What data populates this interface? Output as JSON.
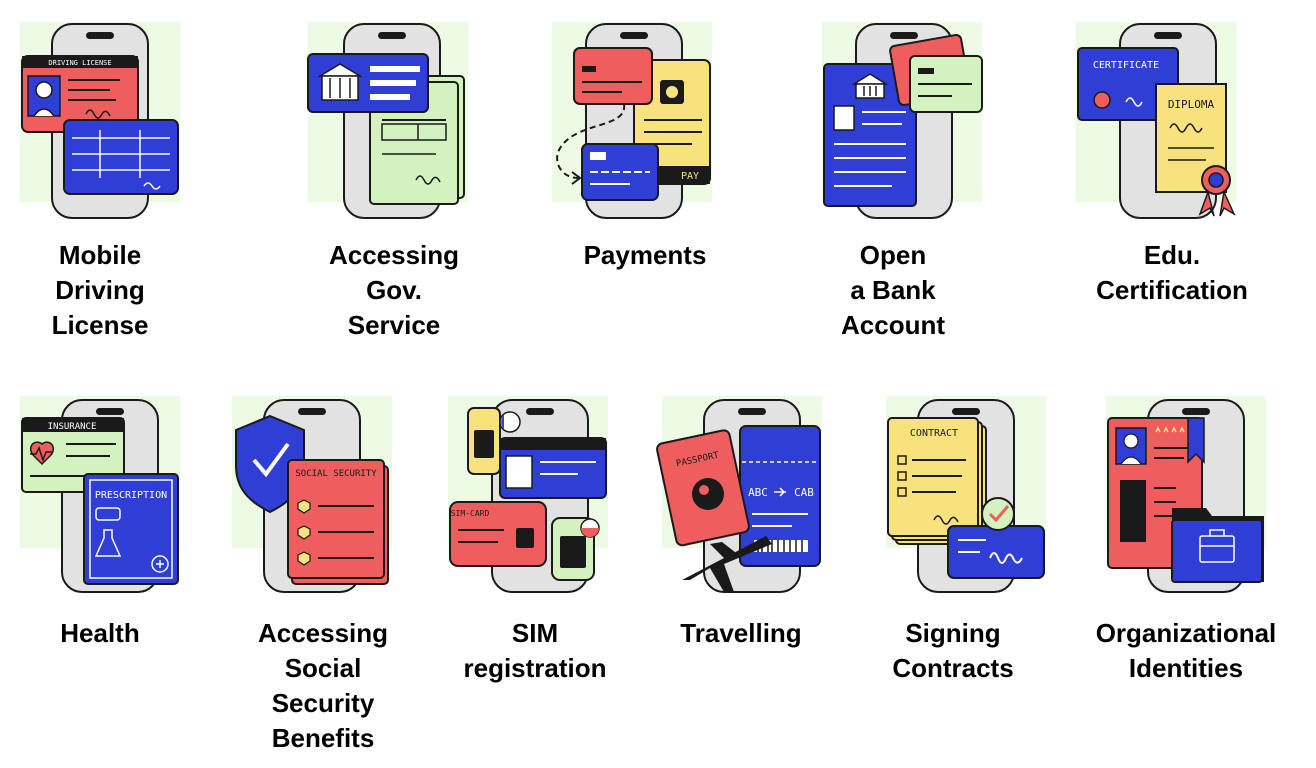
{
  "colors": {
    "red": "#ee5e5e",
    "blue": "#2f3fd6",
    "green": "#d3f2bf",
    "yellow": "#f7e27e",
    "phone": "#e2e2e2",
    "bg": "#eefbe4",
    "outline": "#1a1a1a"
  },
  "tiles": [
    {
      "id": "mobile-driving-license",
      "icon": "driving-license-icon",
      "card_text": "DRIVING LICENSE",
      "label": [
        "Mobile",
        "Driving",
        "License"
      ]
    },
    {
      "id": "accessing-gov-service",
      "icon": "government-building-icon",
      "label": [
        "Accessing",
        "Gov.",
        "Service"
      ]
    },
    {
      "id": "payments",
      "icon": "wallet-icon",
      "card_text": "PAY",
      "label": [
        "Payments"
      ]
    },
    {
      "id": "open-bank-account",
      "icon": "bank-icon",
      "label": [
        "Open",
        "a Bank",
        "Account"
      ]
    },
    {
      "id": "edu-certification",
      "icon": "diploma-icon",
      "card_text": "CERTIFICATE",
      "card_text_2": "DIPLOMA",
      "label": [
        "Edu.",
        "Certification"
      ]
    },
    {
      "id": "health",
      "icon": "heart-icon",
      "card_text": "INSURANCE",
      "card_text_2": "PRESCRIPTION",
      "label": [
        "Health"
      ]
    },
    {
      "id": "accessing-social-security",
      "icon": "shield-check-icon",
      "card_text": "SOCIAL SECURITY",
      "label": [
        "Accessing",
        "Social",
        "Security",
        "Benefits"
      ]
    },
    {
      "id": "sim-registration",
      "icon": "sim-card-icon",
      "card_text": "SIM-CARD",
      "label": [
        "SIM",
        "registration"
      ]
    },
    {
      "id": "travelling",
      "icon": "airplane-icon",
      "card_text": "PASSPORT",
      "card_text_2": "ABC",
      "card_text_3": "CAB",
      "label": [
        "Travelling"
      ]
    },
    {
      "id": "signing-contracts",
      "icon": "checkmark-icon",
      "card_text": "CONTRACT",
      "label": [
        "Signing",
        "Contracts"
      ]
    },
    {
      "id": "organizational-identities",
      "icon": "briefcase-icon",
      "label": [
        "Organizational",
        "Identities"
      ]
    }
  ]
}
